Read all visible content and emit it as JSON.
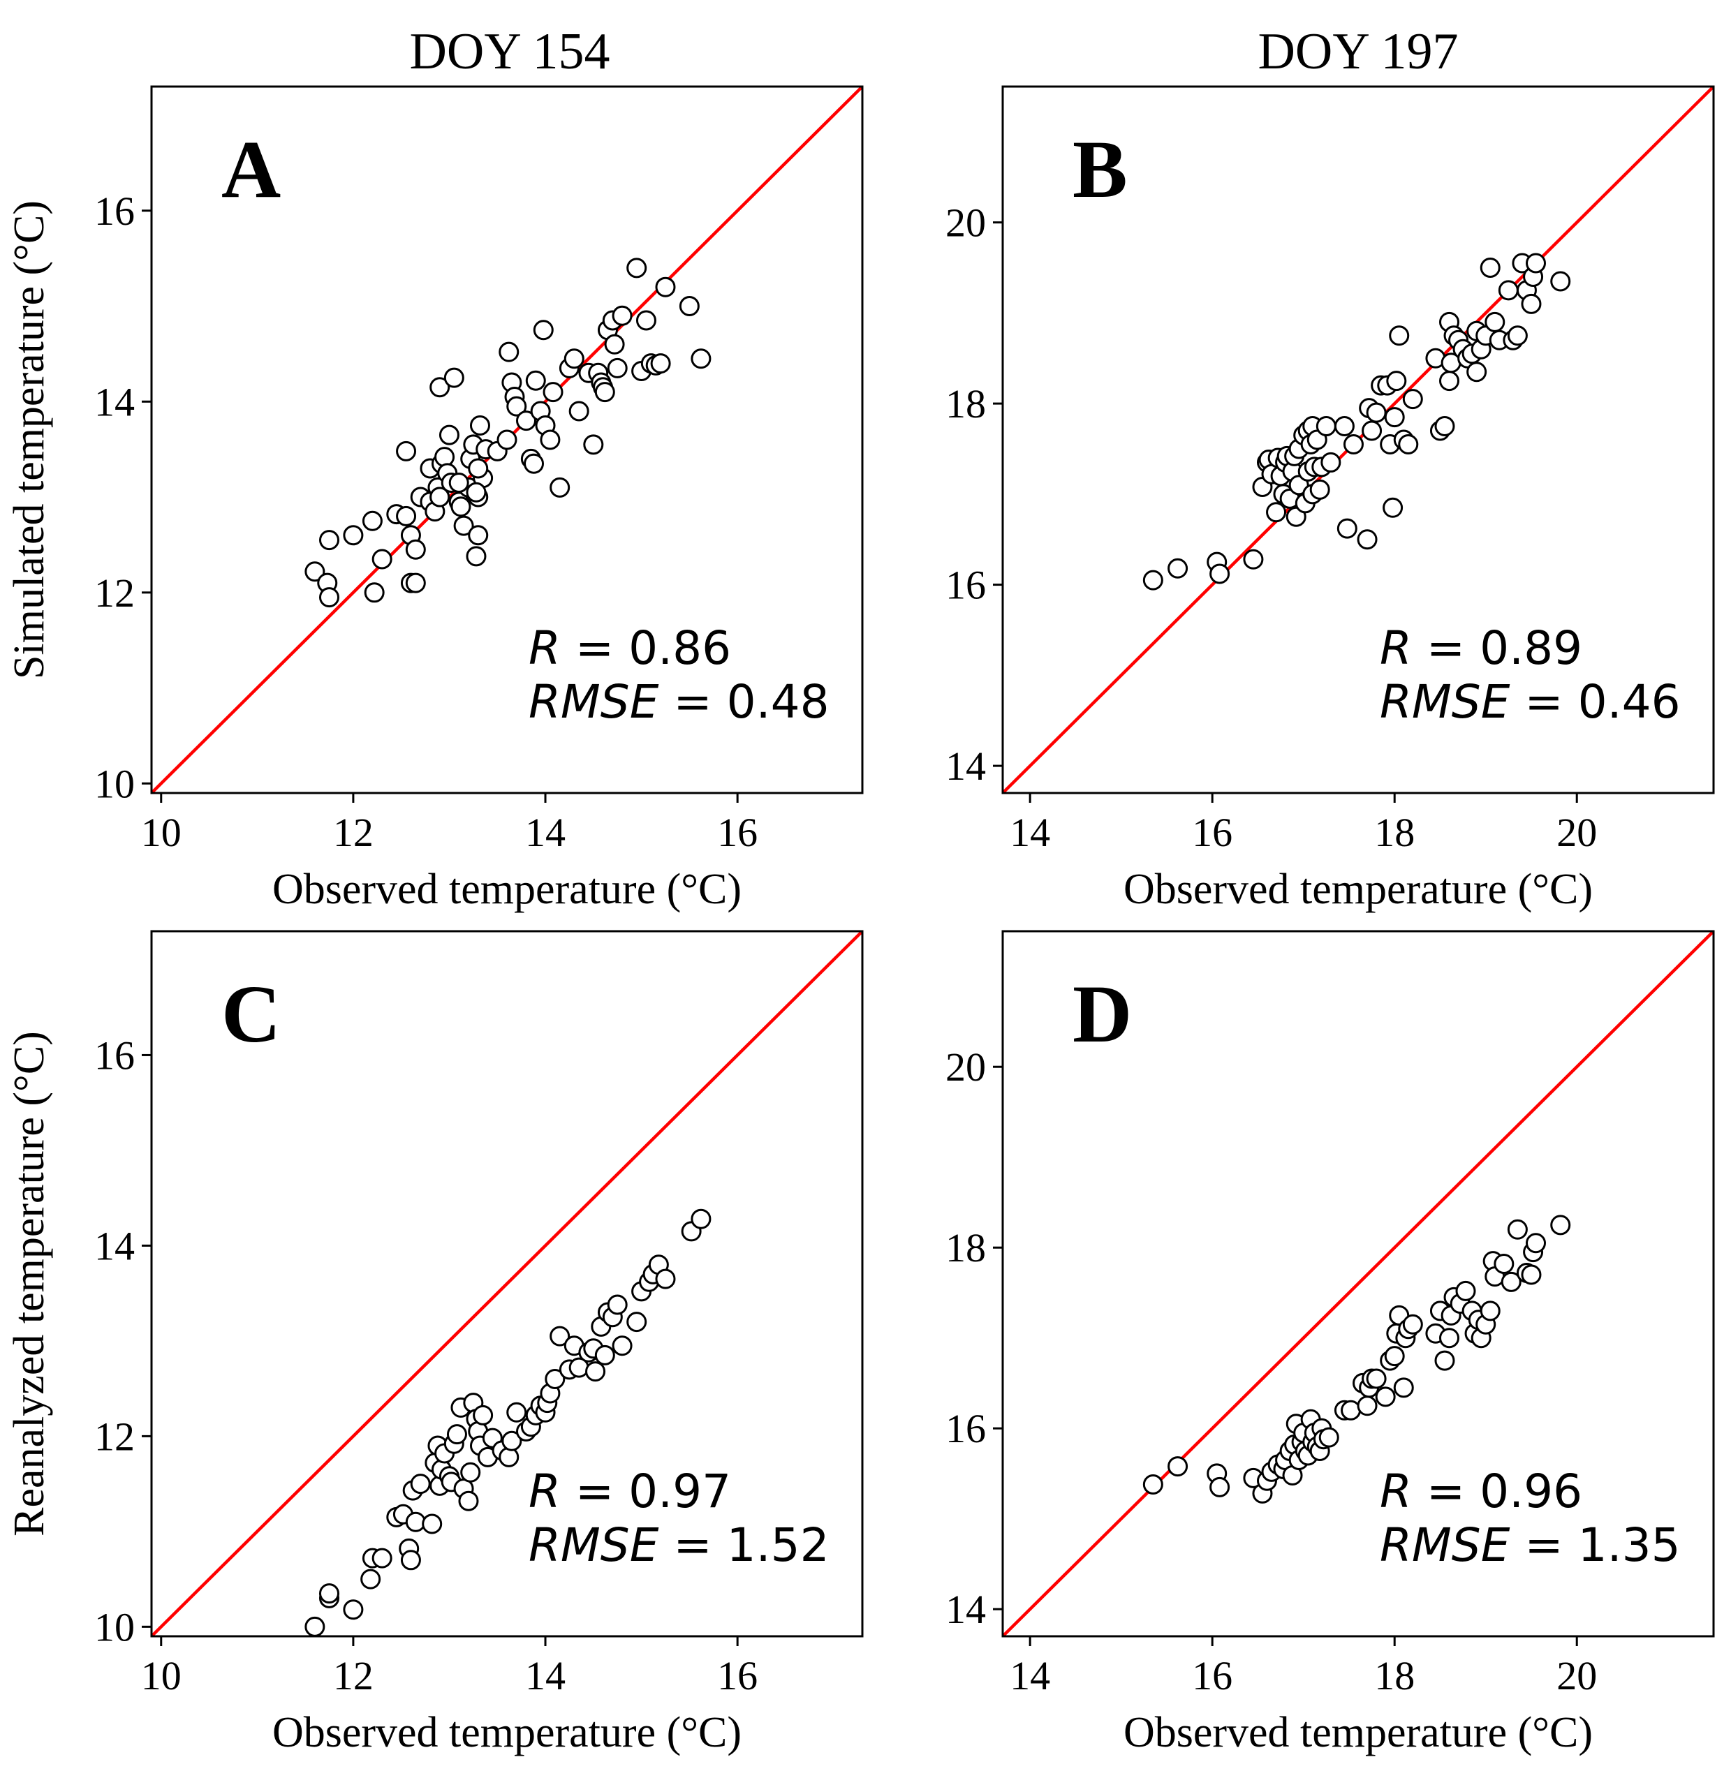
{
  "figure": {
    "column_titles": [
      "DOY 154",
      "DOY 197"
    ]
  },
  "chart_data": [
    {
      "type": "scatter",
      "panel_label": "A",
      "xlabel": "Observed temperature (°C)",
      "ylabel": "Simulated temperature (°C)",
      "xlim": [
        9.9,
        17.3
      ],
      "ylim": [
        9.9,
        17.3
      ],
      "xticks": [
        10,
        12,
        14,
        16
      ],
      "yticks": [
        10,
        12,
        14,
        16
      ],
      "reference_line": "1:1",
      "reference_color": "#ff0000",
      "stats": {
        "R": "0.86",
        "RMSE": "0.48"
      },
      "x": [
        11.6,
        11.75,
        11.73,
        11.75,
        12.0,
        12.2,
        12.22,
        12.3,
        12.45,
        12.55,
        12.6,
        12.55,
        12.6,
        12.65,
        12.65,
        12.7,
        12.8,
        12.8,
        12.85,
        12.88,
        12.9,
        12.9,
        12.92,
        12.95,
        12.98,
        13.0,
        13.02,
        13.05,
        13.1,
        13.12,
        13.15,
        13.2,
        13.22,
        13.25,
        13.28,
        13.3,
        13.3,
        13.32,
        13.35,
        13.38,
        13.5,
        13.62,
        13.65,
        13.68,
        13.7,
        13.8,
        13.85,
        13.9,
        13.95,
        13.98,
        14.0,
        14.05,
        14.08,
        14.15,
        14.25,
        14.3,
        14.35,
        14.45,
        14.5,
        14.55,
        14.58,
        14.6,
        14.62,
        14.65,
        14.7,
        14.72,
        14.75,
        14.8,
        14.95,
        15.0,
        15.05,
        15.1,
        15.15,
        15.2,
        15.25,
        15.5,
        15.62,
        13.28,
        13.6,
        13.88,
        12.9,
        13.1,
        13.3
      ],
      "y": [
        12.22,
        12.55,
        12.1,
        11.95,
        12.6,
        12.75,
        12.0,
        12.35,
        12.82,
        13.48,
        12.1,
        12.8,
        12.6,
        12.45,
        12.1,
        13.0,
        12.95,
        13.3,
        12.85,
        13.1,
        13.0,
        14.15,
        13.35,
        13.42,
        13.25,
        13.65,
        13.15,
        14.25,
        12.95,
        12.9,
        12.7,
        13.1,
        13.4,
        13.55,
        12.38,
        13.0,
        12.6,
        13.75,
        13.2,
        13.5,
        13.48,
        14.52,
        14.2,
        14.05,
        13.95,
        13.8,
        13.4,
        14.22,
        13.9,
        14.75,
        13.75,
        13.6,
        14.1,
        13.1,
        14.35,
        14.45,
        13.9,
        14.3,
        13.55,
        14.3,
        14.2,
        14.15,
        14.1,
        14.75,
        14.85,
        14.6,
        14.35,
        14.9,
        15.4,
        14.32,
        14.85,
        14.4,
        14.38,
        14.4,
        15.2,
        15.0,
        14.45,
        13.05,
        13.6,
        13.35,
        13.0,
        13.15,
        13.3
      ]
    },
    {
      "type": "scatter",
      "panel_label": "B",
      "xlabel": "Observed temperature (°C)",
      "ylabel": "",
      "xlim": [
        13.7,
        21.5
      ],
      "ylim": [
        13.7,
        21.5
      ],
      "xticks": [
        14,
        16,
        18,
        20
      ],
      "yticks": [
        14,
        16,
        18,
        20
      ],
      "reference_line": "1:1",
      "reference_color": "#ff0000",
      "stats": {
        "R": "0.89",
        "RMSE": "0.46"
      },
      "x": [
        15.35,
        15.62,
        16.05,
        16.08,
        16.45,
        16.55,
        16.6,
        16.62,
        16.65,
        16.7,
        16.72,
        16.75,
        16.78,
        16.8,
        16.82,
        16.85,
        16.88,
        16.9,
        16.92,
        16.95,
        16.95,
        17.0,
        17.02,
        17.05,
        17.05,
        17.08,
        17.1,
        17.1,
        17.12,
        17.15,
        17.18,
        17.2,
        17.25,
        17.3,
        17.45,
        17.48,
        17.55,
        17.7,
        17.72,
        17.75,
        17.8,
        17.85,
        17.92,
        17.95,
        17.98,
        18.0,
        18.02,
        18.05,
        18.1,
        18.15,
        18.2,
        18.45,
        18.5,
        18.55,
        18.6,
        18.6,
        18.62,
        18.65,
        18.7,
        18.75,
        18.8,
        18.85,
        18.9,
        18.9,
        18.95,
        19.0,
        19.05,
        19.1,
        19.15,
        19.25,
        19.3,
        19.35,
        19.4,
        19.45,
        19.5,
        19.52,
        19.55,
        19.82
      ],
      "y": [
        16.05,
        16.18,
        16.25,
        16.12,
        16.28,
        17.08,
        17.35,
        17.38,
        17.22,
        16.8,
        17.4,
        17.2,
        17.0,
        17.35,
        17.42,
        16.95,
        17.25,
        17.42,
        16.75,
        17.1,
        17.5,
        17.65,
        16.9,
        17.25,
        17.7,
        17.55,
        17.0,
        17.75,
        17.3,
        17.6,
        17.05,
        17.3,
        17.75,
        17.35,
        17.75,
        16.62,
        17.55,
        16.5,
        17.95,
        17.7,
        17.9,
        18.2,
        18.2,
        17.55,
        16.85,
        17.85,
        18.25,
        18.75,
        17.6,
        17.55,
        18.05,
        18.5,
        17.7,
        17.75,
        18.25,
        18.9,
        18.45,
        18.75,
        18.7,
        18.6,
        18.5,
        18.55,
        18.8,
        18.35,
        18.6,
        18.75,
        19.5,
        18.9,
        18.7,
        19.25,
        18.7,
        18.75,
        19.55,
        19.25,
        19.1,
        19.4,
        19.55,
        19.35
      ]
    },
    {
      "type": "scatter",
      "panel_label": "C",
      "xlabel": "Observed temperature (°C)",
      "ylabel": "Reanalyzed temperature (°C)",
      "xlim": [
        9.9,
        17.3
      ],
      "ylim": [
        9.9,
        17.3
      ],
      "xticks": [
        10,
        12,
        14,
        16
      ],
      "yticks": [
        10,
        12,
        14,
        16
      ],
      "reference_line": "1:1",
      "reference_color": "#ff0000",
      "stats": {
        "R": "0.97",
        "RMSE": "1.52"
      },
      "x": [
        11.6,
        11.75,
        11.75,
        12.0,
        12.18,
        12.2,
        12.3,
        12.45,
        12.52,
        12.58,
        12.6,
        12.62,
        12.65,
        12.7,
        12.82,
        12.85,
        12.88,
        12.9,
        12.92,
        12.95,
        13.0,
        13.02,
        13.05,
        13.08,
        13.12,
        13.15,
        13.2,
        13.22,
        13.25,
        13.28,
        13.3,
        13.32,
        13.35,
        13.4,
        13.45,
        13.55,
        13.62,
        13.65,
        13.7,
        13.8,
        13.85,
        13.9,
        13.95,
        14.0,
        14.02,
        14.05,
        14.1,
        14.15,
        14.25,
        14.3,
        14.35,
        14.45,
        14.5,
        14.52,
        14.58,
        14.62,
        14.65,
        14.7,
        14.75,
        14.8,
        14.95,
        15.0,
        15.08,
        15.12,
        15.18,
        15.25,
        15.52,
        15.62
      ],
      "y": [
        10.0,
        10.3,
        10.35,
        10.18,
        10.5,
        10.72,
        10.72,
        11.15,
        11.18,
        10.82,
        10.7,
        11.43,
        11.1,
        11.5,
        11.08,
        11.72,
        11.9,
        11.48,
        11.65,
        11.82,
        11.58,
        11.52,
        11.92,
        12.02,
        12.3,
        11.45,
        11.32,
        11.62,
        12.35,
        12.18,
        12.05,
        11.9,
        12.22,
        11.78,
        11.98,
        11.85,
        11.78,
        11.95,
        12.25,
        12.05,
        12.1,
        12.22,
        12.32,
        12.25,
        12.35,
        12.45,
        12.6,
        13.05,
        12.7,
        12.95,
        12.72,
        12.88,
        12.92,
        12.68,
        13.15,
        12.85,
        13.3,
        13.25,
        13.38,
        12.95,
        13.2,
        13.52,
        13.62,
        13.7,
        13.8,
        13.65,
        14.15,
        14.28
      ]
    },
    {
      "type": "scatter",
      "panel_label": "D",
      "xlabel": "Observed temperature (°C)",
      "ylabel": "",
      "xlim": [
        13.7,
        21.5
      ],
      "ylim": [
        13.7,
        21.5
      ],
      "xticks": [
        14,
        16,
        18,
        20
      ],
      "yticks": [
        14,
        16,
        18,
        20
      ],
      "reference_line": "1:1",
      "reference_color": "#ff0000",
      "stats": {
        "R": "0.96",
        "RMSE": "1.35"
      },
      "x": [
        15.35,
        15.62,
        16.05,
        16.08,
        16.45,
        16.55,
        16.6,
        16.65,
        16.72,
        16.78,
        16.8,
        16.85,
        16.88,
        16.9,
        16.92,
        16.95,
        16.98,
        17.0,
        17.02,
        17.05,
        17.08,
        17.1,
        17.12,
        17.15,
        17.18,
        17.2,
        17.22,
        17.28,
        17.45,
        17.52,
        17.65,
        17.7,
        17.72,
        17.75,
        17.8,
        17.9,
        17.95,
        18.0,
        18.02,
        18.05,
        18.1,
        18.12,
        18.15,
        18.2,
        18.45,
        18.5,
        18.55,
        18.6,
        18.62,
        18.65,
        18.72,
        18.78,
        18.85,
        18.88,
        18.92,
        18.95,
        19.0,
        19.05,
        19.08,
        19.1,
        19.2,
        19.28,
        19.35,
        19.45,
        19.5,
        19.52,
        19.55,
        19.82
      ],
      "y": [
        15.38,
        15.58,
        15.5,
        15.35,
        15.45,
        15.28,
        15.42,
        15.52,
        15.6,
        15.55,
        15.65,
        15.75,
        15.48,
        15.82,
        16.05,
        15.65,
        15.85,
        15.95,
        15.75,
        15.7,
        16.1,
        15.85,
        15.95,
        15.8,
        15.75,
        16.0,
        15.88,
        15.9,
        16.2,
        16.2,
        16.5,
        16.25,
        16.45,
        16.55,
        16.55,
        16.35,
        16.75,
        16.8,
        17.05,
        17.25,
        16.45,
        17.0,
        17.1,
        17.15,
        17.05,
        17.3,
        16.75,
        17.0,
        17.25,
        17.45,
        17.38,
        17.52,
        17.3,
        17.05,
        17.2,
        17.0,
        17.15,
        17.3,
        17.85,
        17.68,
        17.82,
        17.62,
        18.2,
        17.72,
        17.7,
        17.95,
        18.05,
        18.25
      ]
    }
  ]
}
